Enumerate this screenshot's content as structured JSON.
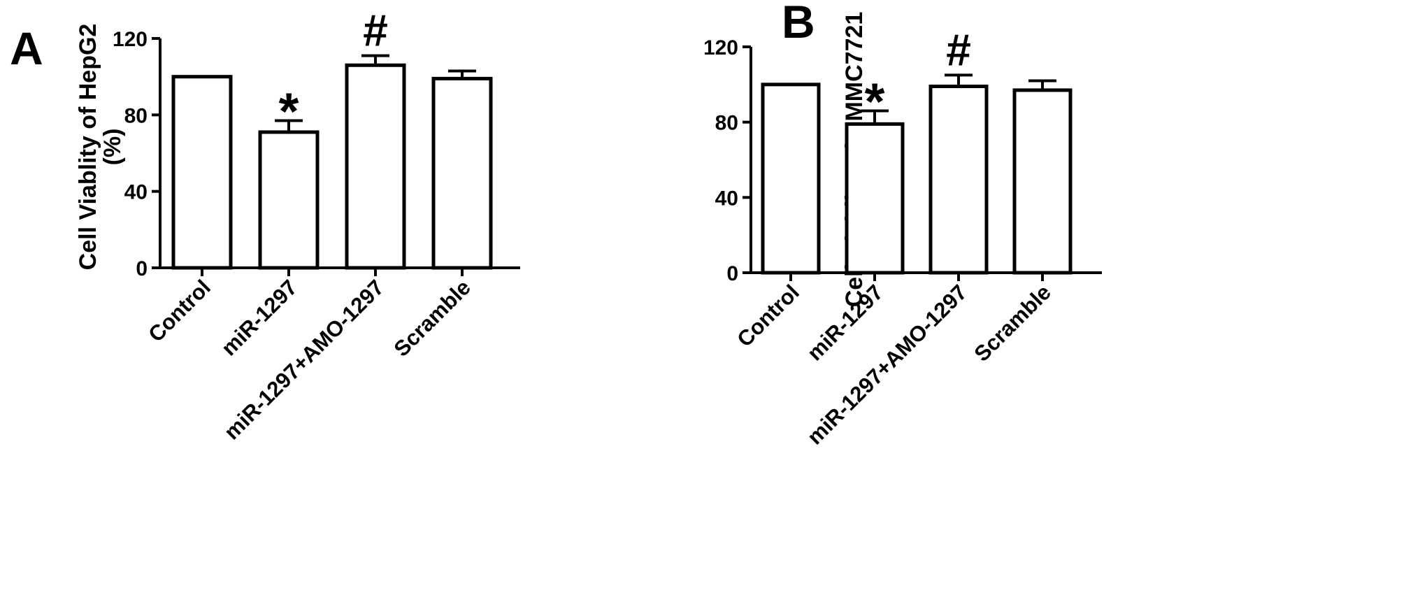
{
  "chart_data": [
    {
      "panel_label": "A",
      "type": "bar",
      "categories": [
        "Control",
        "miR-1297",
        "miR-1297+AMO-1297",
        "Scramble"
      ],
      "values": [
        100,
        71,
        106,
        99
      ],
      "errors": [
        0,
        6,
        5,
        4
      ],
      "annotations": [
        "",
        "*",
        "#",
        ""
      ],
      "ylabel_line1": "Cell Viablity of HepG2",
      "ylabel_line2": "(%)",
      "ylim": [
        0,
        120
      ],
      "yticks": [
        0,
        40,
        80,
        120
      ],
      "grid": false,
      "colors": {
        "bar_fill": "#ffffff",
        "bar_stroke": "#000000"
      }
    },
    {
      "panel_label": "B",
      "type": "bar",
      "categories": [
        "Control",
        "miR-1297",
        "miR-1297+AMO-1297",
        "Scramble"
      ],
      "values": [
        100,
        79,
        99,
        97
      ],
      "errors": [
        0,
        7,
        6,
        5
      ],
      "annotations": [
        "",
        "*",
        "#",
        ""
      ],
      "ylabel_line1": "Cell Viablity of SMMC7721",
      "ylabel_line2": "(%)",
      "ylim": [
        0,
        120
      ],
      "yticks": [
        0,
        40,
        80,
        120
      ],
      "grid": false,
      "colors": {
        "bar_fill": "#ffffff",
        "bar_stroke": "#000000"
      }
    }
  ]
}
